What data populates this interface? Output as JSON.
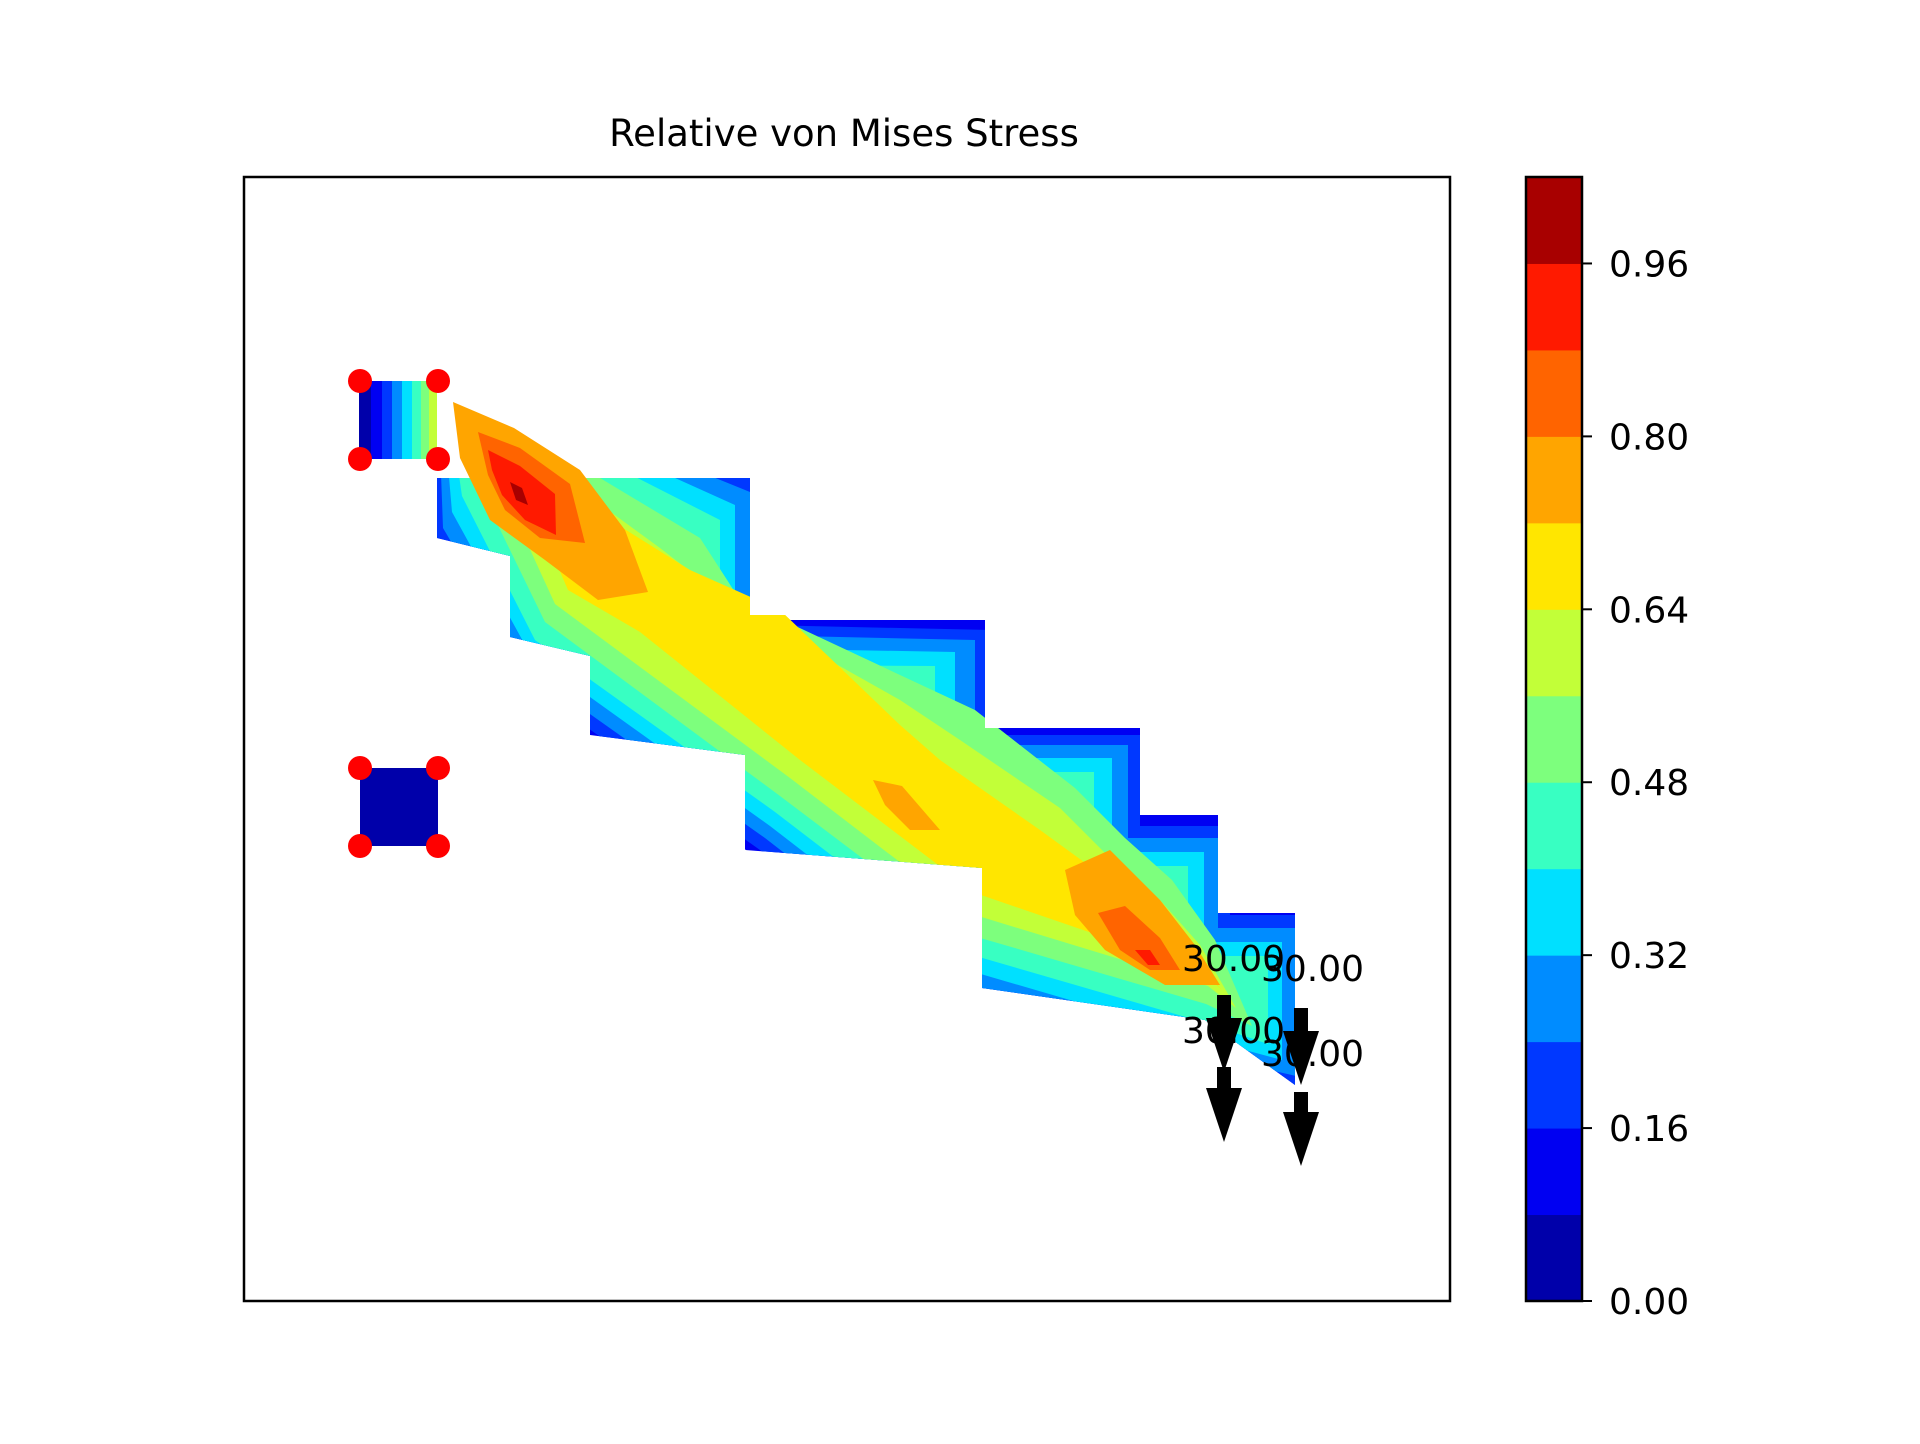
{
  "chart_data": {
    "type": "heatmap",
    "title": "Relative von Mises Stress",
    "xlabel": "",
    "ylabel": "",
    "axes_ticks_visible": false,
    "grid": false,
    "colorbar": {
      "colormap": "jet",
      "vmin": 0.0,
      "vmax": 1.04,
      "levels": [
        0.0,
        0.08,
        0.16,
        0.24,
        0.32,
        0.4,
        0.48,
        0.56,
        0.64,
        0.72,
        0.8,
        0.88,
        0.96,
        1.04
      ],
      "ticks": [
        0.0,
        0.16,
        0.32,
        0.48,
        0.64,
        0.8,
        0.96
      ],
      "tick_labels": [
        "0.00",
        "0.16",
        "0.32",
        "0.48",
        "0.64",
        "0.80",
        "0.96"
      ],
      "band_colors": [
        "#0000aa",
        "#0000f2",
        "#0038ff",
        "#008cff",
        "#00e0ff",
        "#38ffc2",
        "#7dff7d",
        "#c2ff38",
        "#ffe600",
        "#ffa500",
        "#ff6400",
        "#ff1a00",
        "#a80000"
      ]
    },
    "supports": {
      "marker": "red-circle",
      "count": 8
    },
    "loads": [
      {
        "label": "30.00",
        "direction": "down"
      },
      {
        "label": "30.00",
        "direction": "down"
      },
      {
        "label": "30.00",
        "direction": "down"
      },
      {
        "label": "30.00",
        "direction": "down"
      }
    ],
    "hotspots": [
      {
        "region": "upper-left fixed end",
        "peak_value": 1.0
      },
      {
        "region": "middle of beam",
        "peak_value": 0.76
      },
      {
        "region": "lower-right loaded end",
        "peak_value": 0.92
      }
    ]
  }
}
